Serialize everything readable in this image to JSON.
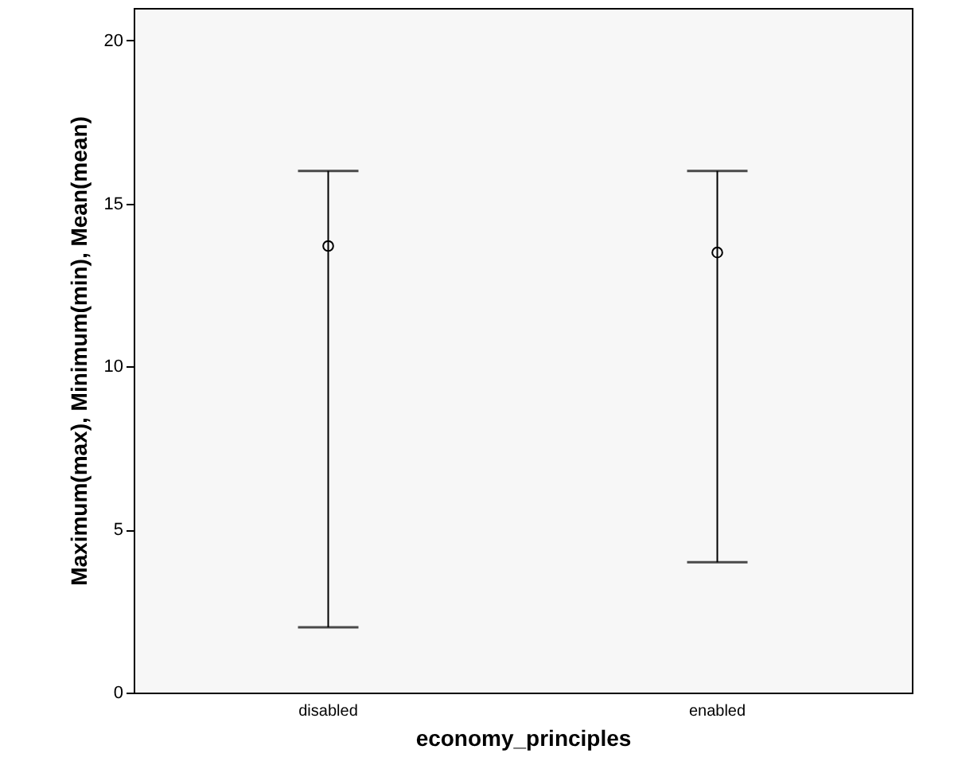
{
  "chart_data": {
    "type": "scatter",
    "xlabel": "economy_principles",
    "ylabel": "Maximum(max), Minimum(min), Mean(mean)",
    "categories": [
      "disabled",
      "enabled"
    ],
    "values": [
      13.7,
      13.5
    ],
    "errors": [
      [
        2,
        16
      ],
      [
        4,
        16
      ]
    ],
    "color": "#000000",
    "marker": "circle",
    "ylim": [
      0,
      21
    ],
    "yticks": [
      0,
      5,
      10,
      15,
      20
    ],
    "grid": false
  }
}
